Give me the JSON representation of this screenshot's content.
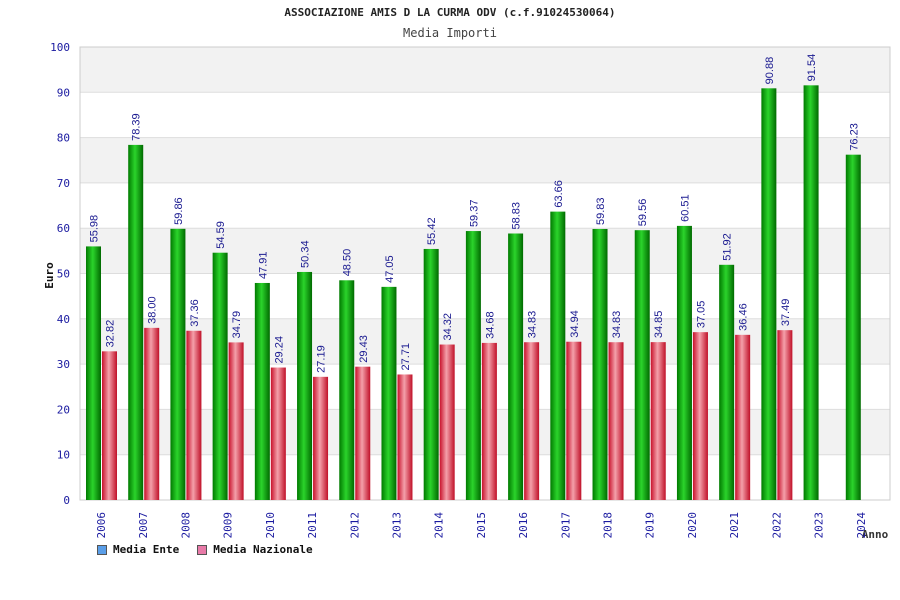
{
  "chart_data": {
    "type": "bar",
    "title": "ASSOCIAZIONE AMIS D LA CURMA ODV (c.f.91024530064)",
    "subtitle": "Media Importi",
    "xlabel": "Anno",
    "ylabel": "Euro",
    "ylim": [
      0,
      100
    ],
    "yticks": [
      0,
      10,
      20,
      30,
      40,
      50,
      60,
      70,
      80,
      90,
      100
    ],
    "grid": true,
    "legend_position": "bottom-left",
    "categories": [
      "2006",
      "2007",
      "2008",
      "2009",
      "2010",
      "2011",
      "2012",
      "2013",
      "2014",
      "2015",
      "2016",
      "2017",
      "2018",
      "2019",
      "2020",
      "2021",
      "2022",
      "2023",
      "2024"
    ],
    "series": [
      {
        "name": "Media Ente",
        "color": "#00a000",
        "values": [
          55.98,
          78.39,
          59.86,
          54.59,
          47.91,
          50.34,
          48.5,
          47.05,
          55.42,
          59.37,
          58.83,
          63.66,
          59.83,
          59.56,
          60.51,
          51.92,
          90.88,
          91.54,
          76.23
        ],
        "labels": [
          "55.98",
          "78.39",
          "59.86",
          "54.59",
          "47.91",
          "50.34",
          "48.50",
          "47.05",
          "55.42",
          "59.37",
          "58.83",
          "63.66",
          "59.83",
          "59.56",
          "60.51",
          "51.92",
          "90.88",
          "91.54",
          "76.23"
        ]
      },
      {
        "name": "Media Nazionale",
        "color": "#e83040",
        "values": [
          32.82,
          38.0,
          37.36,
          34.79,
          29.24,
          27.19,
          29.43,
          27.71,
          34.32,
          34.68,
          34.83,
          34.94,
          34.83,
          34.85,
          37.05,
          36.46,
          37.49,
          null,
          null
        ],
        "labels": [
          "32.82",
          "38.00",
          "37.36",
          "34.79",
          "29.24",
          "27.19",
          "29.43",
          "27.71",
          "34.32",
          "34.68",
          "34.83",
          "34.94",
          "34.83",
          "34.85",
          "37.05",
          "36.46",
          "37.49",
          "",
          ""
        ]
      }
    ],
    "legend": [
      {
        "label": "Media Ente",
        "color": "#5a9ee8"
      },
      {
        "label": "Media Nazionale",
        "color": "#e87aa8"
      }
    ]
  }
}
